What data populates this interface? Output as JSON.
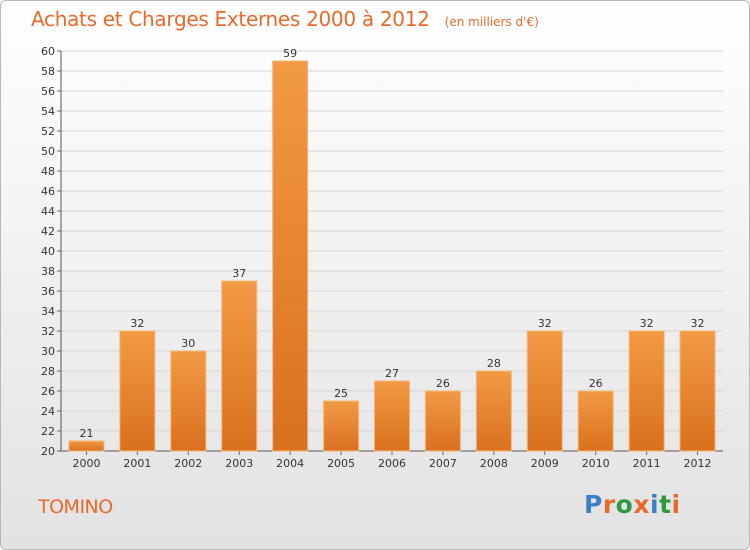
{
  "chart_data": {
    "type": "bar",
    "title": "Achats et Charges Externes 2000 à 2012",
    "subtitle": "(en milliers d'€)",
    "categories": [
      "2000",
      "2001",
      "2002",
      "2003",
      "2004",
      "2005",
      "2006",
      "2007",
      "2008",
      "2009",
      "2010",
      "2011",
      "2012"
    ],
    "values": [
      21,
      32,
      30,
      37,
      59,
      25,
      27,
      26,
      28,
      32,
      26,
      32,
      32
    ],
    "ylim": [
      20,
      60
    ],
    "yticks": [
      20,
      22,
      24,
      26,
      28,
      30,
      32,
      34,
      36,
      38,
      40,
      42,
      44,
      46,
      48,
      50,
      52,
      54,
      56,
      58,
      60
    ],
    "grid": true,
    "bar_color": "#f29a45",
    "bar_color_dark": "#d9701e"
  },
  "footer": {
    "commune": "TOMINO",
    "logo": "Proxiti",
    "logo_colors": [
      "#3b7fc4",
      "#e8692a",
      "#2e9a3e",
      "#e8692a",
      "#3b7fc4",
      "#2e9a3e",
      "#e8692a"
    ]
  }
}
